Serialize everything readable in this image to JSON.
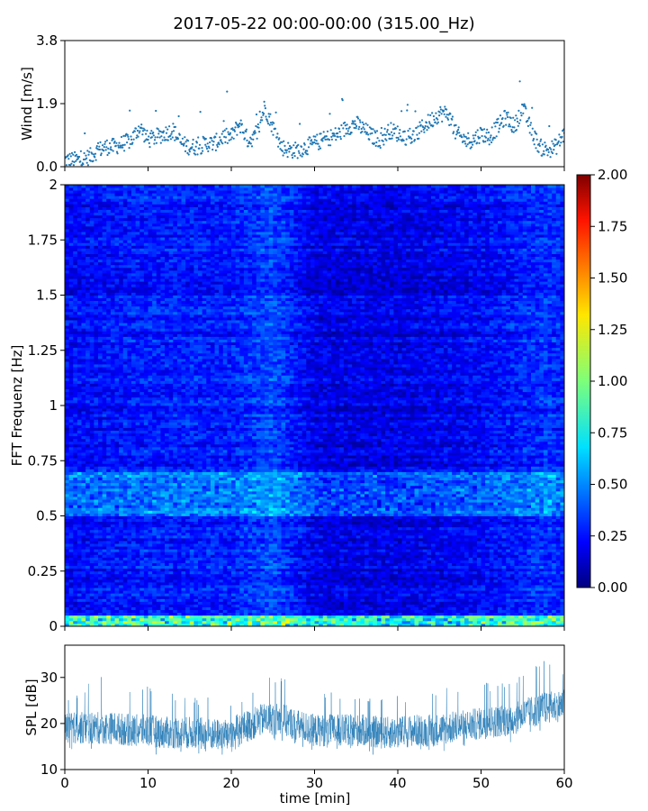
{
  "figure": {
    "title": "2017-05-22 00:00-00:00 (315.00_Hz)"
  },
  "chart_data": [
    {
      "type": "scatter",
      "name": "wind",
      "ylabel": "Wind [m/s]",
      "xlim": [
        0,
        60
      ],
      "ylim": [
        0.0,
        3.8
      ],
      "yticks": [
        0.0,
        1.9,
        3.8
      ],
      "ytick_labels": [
        "0.0",
        "1.9",
        "3.8"
      ],
      "color": "#1f77b4",
      "x": [
        0,
        1,
        2,
        3,
        4,
        5,
        6,
        7,
        8,
        9,
        10,
        11,
        12,
        13,
        14,
        15,
        16,
        17,
        18,
        19,
        20,
        21,
        22,
        23,
        24,
        25,
        26,
        27,
        28,
        29,
        30,
        31,
        32,
        33,
        34,
        35,
        36,
        37,
        38,
        39,
        40,
        41,
        42,
        43,
        44,
        45,
        46,
        47,
        48,
        49,
        50,
        51,
        52,
        53,
        54,
        55,
        56,
        57,
        58,
        59,
        60
      ],
      "y": [
        0.2,
        0.2,
        0.2,
        0.3,
        0.5,
        0.6,
        0.6,
        0.7,
        0.8,
        1.2,
        0.8,
        0.9,
        1.0,
        1.1,
        0.7,
        0.6,
        0.6,
        0.7,
        0.7,
        0.9,
        0.9,
        1.3,
        0.8,
        0.9,
        1.8,
        1.2,
        0.6,
        0.5,
        0.5,
        0.6,
        0.7,
        0.8,
        0.9,
        1.0,
        1.2,
        1.3,
        1.1,
        0.9,
        0.8,
        1.1,
        1.0,
        0.9,
        0.9,
        1.2,
        1.4,
        1.6,
        1.6,
        1.0,
        0.8,
        0.8,
        1.0,
        0.9,
        1.2,
        1.5,
        1.2,
        1.8,
        1.1,
        0.6,
        0.5,
        0.6,
        1.0
      ]
    },
    {
      "type": "heatmap",
      "name": "spectrogram",
      "ylabel": "FFT Frequenz [Hz]",
      "xlim": [
        0,
        60
      ],
      "ylim": [
        0,
        2
      ],
      "yticks": [
        0,
        0.25,
        0.5,
        0.75,
        1,
        1.25,
        1.5,
        1.75,
        2
      ],
      "ytick_labels": [
        "0",
        "0.25",
        "0.5",
        "0.75",
        "1",
        "1.25",
        "1.5",
        "1.75",
        "2"
      ],
      "colormap": "jet",
      "color_range": [
        0.0,
        2.0
      ],
      "colorbar_ticks": [
        "0.00",
        "0.25",
        "0.50",
        "0.75",
        "1.00",
        "1.25",
        "1.50",
        "1.75",
        "2.00"
      ],
      "mean_value_by_time_min": {
        "time_min": [
          0,
          10,
          20,
          25,
          30,
          40,
          50,
          58,
          60
        ],
        "value": [
          0.25,
          0.3,
          0.3,
          0.4,
          0.2,
          0.2,
          0.25,
          0.35,
          0.3
        ]
      },
      "notable_bands": [
        {
          "freq_hz": [
            0.0,
            0.05
          ],
          "value": 1.0
        },
        {
          "freq_hz": [
            0.5,
            0.7
          ],
          "value": 0.55
        }
      ]
    },
    {
      "type": "line",
      "name": "spl",
      "xlabel": "time [min]",
      "ylabel": "SPL [dB]",
      "xlim": [
        0,
        60
      ],
      "ylim": [
        10,
        37
      ],
      "xticks": [
        0,
        10,
        20,
        30,
        40,
        50,
        60
      ],
      "xtick_labels": [
        "0",
        "10",
        "20",
        "30",
        "40",
        "50",
        "60"
      ],
      "yticks": [
        10,
        20,
        30
      ],
      "ytick_labels": [
        "10",
        "20",
        "30"
      ],
      "color": "#1f77b4",
      "x": [
        0,
        2,
        4,
        6,
        8,
        10,
        12,
        14,
        16,
        18,
        20,
        22,
        24,
        26,
        28,
        30,
        32,
        34,
        36,
        38,
        40,
        42,
        44,
        46,
        48,
        50,
        52,
        54,
        56,
        58,
        60
      ],
      "y_mean": [
        19,
        19,
        19,
        19,
        18.5,
        18.5,
        18,
        18,
        18,
        17.5,
        18,
        19.5,
        21,
        21,
        19.5,
        18.5,
        18.5,
        18.5,
        18.5,
        18,
        18,
        18.5,
        18.5,
        19,
        19.5,
        20,
        20.5,
        21,
        22.5,
        23.5,
        24
      ],
      "y_min": [
        14,
        15,
        14,
        14,
        14,
        13,
        13,
        12,
        13,
        13,
        13,
        14,
        15,
        15,
        14,
        14,
        14,
        14,
        13,
        13,
        13,
        14,
        14,
        14,
        15,
        15,
        15,
        16,
        17,
        18,
        19
      ],
      "y_max": [
        26,
        27,
        31,
        29,
        28,
        28,
        26,
        27,
        26,
        27,
        25,
        27,
        30,
        31,
        28,
        27,
        27,
        26,
        27,
        26,
        26,
        27,
        27,
        28,
        28,
        29,
        29,
        30,
        33,
        34,
        32
      ]
    }
  ]
}
